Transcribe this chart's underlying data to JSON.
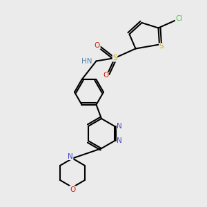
{
  "bg_color": "#ebebeb",
  "bond_color": "#000000",
  "fig_width": 3.0,
  "fig_height": 3.0,
  "dpi": 100,
  "colors": {
    "N": "#4444cc",
    "O": "#cc2200",
    "S": "#ccaa00",
    "Cl": "#44cc44",
    "C": "#000000",
    "NH": "#5588aa"
  }
}
